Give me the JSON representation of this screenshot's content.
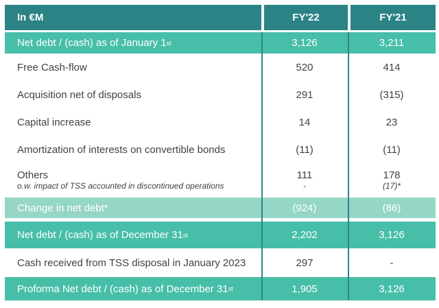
{
  "colors": {
    "header_bg": "#2B8386",
    "teal_row_bg": "#47BEA8",
    "light_row_bg": "#96D6C6",
    "divider": "#2E8588",
    "text_dark": "#414141",
    "text_white": "#FFFFFF",
    "page_bg": "#FFFFFF"
  },
  "header": {
    "unit_label": "In €M",
    "col_fy22": "FY'22",
    "col_fy21": "FY'21"
  },
  "rows": [
    {
      "label": "Net debt / (cash) as of January 1",
      "sup": "st",
      "fy22": "3,126",
      "fy21": "3,211"
    },
    {
      "label": "Free Cash-flow",
      "fy22": "520",
      "fy21": "414"
    },
    {
      "label": "Acquisition net of disposals",
      "fy22": "291",
      "fy21": "(315)"
    },
    {
      "label": "Capital increase",
      "fy22": "14",
      "fy21": "23"
    },
    {
      "label": "Amortization of interests on convertible bonds",
      "fy22": "(11)",
      "fy21": "(11)"
    },
    {
      "label": "Others",
      "sublabel": "o.w. impact of TSS accounted in discontinued operations",
      "fy22": "111",
      "fy22_sub": "-",
      "fy21": "178",
      "fy21_sub": "(17)*"
    },
    {
      "label": "Change in net debt*",
      "fy22": "(924)",
      "fy21": "(86)"
    },
    {
      "label": "Net debt / (cash) as of December 31",
      "sup": "st",
      "fy22": "2,202",
      "fy21": "3,126"
    },
    {
      "label": "Cash received from TSS disposal in January 2023",
      "fy22": "297",
      "fy21": "-"
    },
    {
      "label": "Proforma Net debt / (cash) as of December 31",
      "sup": "st",
      "fy22": "1,905",
      "fy21": "3,126"
    }
  ],
  "chart_data": {
    "type": "table",
    "title": "In €M",
    "columns": [
      "FY'22",
      "FY'21"
    ],
    "rows": [
      {
        "label": "Net debt / (cash) as of January 1st",
        "FY22": 3126,
        "FY21": 3211
      },
      {
        "label": "Free Cash-flow",
        "FY22": 520,
        "FY21": 414
      },
      {
        "label": "Acquisition net of disposals",
        "FY22": 291,
        "FY21": -315
      },
      {
        "label": "Capital increase",
        "FY22": 14,
        "FY21": 23
      },
      {
        "label": "Amortization of interests on convertible bonds",
        "FY22": -11,
        "FY21": -11
      },
      {
        "label": "Others",
        "FY22": 111,
        "FY21": 178
      },
      {
        "label": "o.w. impact of TSS accounted in discontinued operations",
        "FY22": null,
        "FY21": -17
      },
      {
        "label": "Change in net debt*",
        "FY22": -924,
        "FY21": -86
      },
      {
        "label": "Net debt / (cash) as of December 31st",
        "FY22": 2202,
        "FY21": 3126
      },
      {
        "label": "Cash received from TSS disposal in January 2023",
        "FY22": 297,
        "FY21": null
      },
      {
        "label": "Proforma Net debt / (cash) as of December 31st",
        "FY22": 1905,
        "FY21": 3126
      }
    ]
  }
}
